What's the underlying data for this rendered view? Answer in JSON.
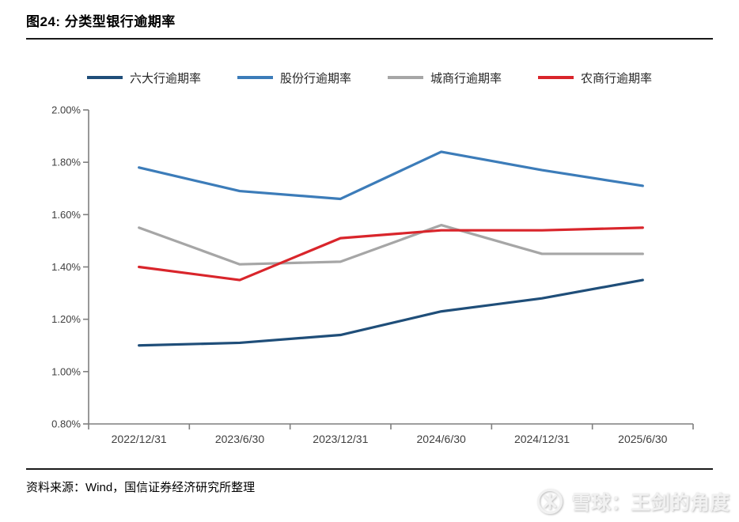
{
  "title": "图24: 分类型银行逾期率",
  "source_note": "资料来源：Wind，国信证券经济研究所整理",
  "watermark": {
    "icon": "xueqiu-logo",
    "text": "雪球：王剑的角度"
  },
  "chart_data": {
    "type": "line",
    "title": "分类型银行逾期率",
    "x": [
      "2022/12/31",
      "2023/6/30",
      "2023/12/31",
      "2024/6/30",
      "2024/12/31",
      "2025/6/30"
    ],
    "series": [
      {
        "name": "六大行逾期率",
        "color": "#1F4E79",
        "values": [
          1.1,
          1.11,
          1.14,
          1.23,
          1.28,
          1.35
        ]
      },
      {
        "name": "股份行逾期率",
        "color": "#3C7CB9",
        "values": [
          1.78,
          1.69,
          1.66,
          1.84,
          1.77,
          1.71
        ]
      },
      {
        "name": "城商行逾期率",
        "color": "#A6A6A6",
        "values": [
          1.55,
          1.41,
          1.42,
          1.56,
          1.45,
          1.45
        ]
      },
      {
        "name": "农商行逾期率",
        "color": "#D9252B",
        "values": [
          1.4,
          1.35,
          1.51,
          1.54,
          1.54,
          1.55
        ]
      }
    ],
    "ylim": [
      0.8,
      2.0
    ],
    "ytick_step": 0.2,
    "ytick_labels": [
      "0.80%",
      "1.00%",
      "1.20%",
      "1.40%",
      "1.60%",
      "1.80%",
      "2.00%"
    ],
    "ylabel": "",
    "xlabel": "",
    "grid": false,
    "legend_position": "top",
    "axis_color": "#7F7F7F",
    "tick_label_color": "#404040",
    "line_width": 3.2
  }
}
